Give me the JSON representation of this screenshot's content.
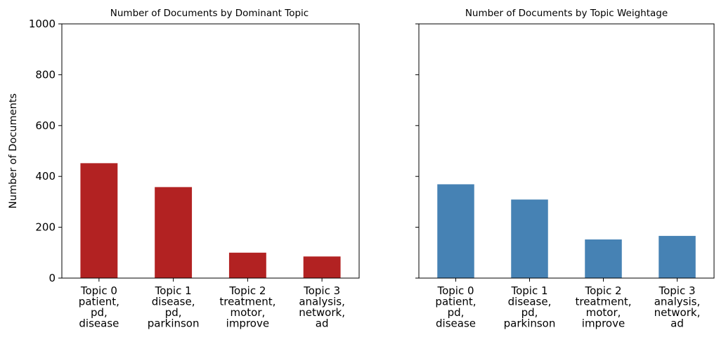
{
  "chart_data": [
    {
      "type": "bar",
      "title": "Number of Documents by Dominant Topic",
      "xlabel": "",
      "ylabel": "Number of Documents",
      "ylim": [
        0,
        1000
      ],
      "yticks": [
        0,
        200,
        400,
        600,
        800,
        1000
      ],
      "bar_color": "#b22222",
      "categories": [
        [
          "Topic 0",
          "patient,",
          "pd,",
          "disease"
        ],
        [
          "Topic 1",
          "disease,",
          "pd,",
          "parkinson"
        ],
        [
          "Topic 2",
          "treatment,",
          "motor,",
          "improve"
        ],
        [
          "Topic 3",
          "analysis,",
          "network,",
          "ad"
        ]
      ],
      "values": [
        452,
        358,
        100,
        85
      ],
      "grid": false,
      "show_ytick_labels": true
    },
    {
      "type": "bar",
      "title": "Number of Documents by Topic Weightage",
      "xlabel": "",
      "ylabel": "",
      "ylim": [
        0,
        1000
      ],
      "yticks": [
        0,
        200,
        400,
        600,
        800,
        1000
      ],
      "bar_color": "#4682b4",
      "categories": [
        [
          "Topic 0",
          "patient,",
          "pd,",
          "disease"
        ],
        [
          "Topic 1",
          "disease,",
          "pd,",
          "parkinson"
        ],
        [
          "Topic 2",
          "treatment,",
          "motor,",
          "improve"
        ],
        [
          "Topic 3",
          "analysis,",
          "network,",
          "ad"
        ]
      ],
      "values": [
        369,
        309,
        152,
        166
      ],
      "grid": false,
      "show_ytick_labels": false
    }
  ]
}
